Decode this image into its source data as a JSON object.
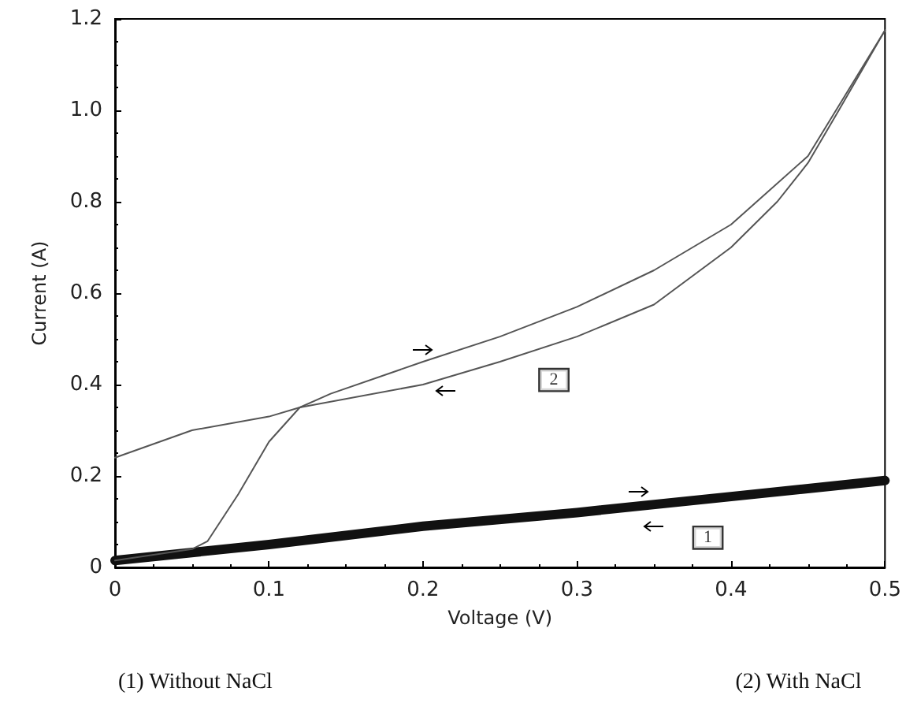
{
  "chart_data": {
    "type": "line",
    "xlabel": "Voltage (V)",
    "ylabel": "Current (A)",
    "xlim": [
      0,
      0.5
    ],
    "xticks": [
      0,
      0.1,
      0.2,
      0.3,
      0.4,
      0.5
    ],
    "ylim": [
      0,
      1.2
    ],
    "yticks": [
      0,
      0.2,
      0.4,
      0.6,
      0.8,
      {
        "value": 1,
        "label": "1.0"
      },
      1.2
    ],
    "grid": false,
    "marker": "none",
    "line_style": "solid",
    "series": [
      {
        "color": "#111111",
        "x": [
          0,
          0.1,
          0.2,
          0.3,
          0.4,
          0.5
        ],
        "values": [
          0.015,
          0.05,
          0.09,
          0.12,
          0.155,
          0.19
        ]
      },
      {
        "color": "#555555",
        "x": [
          0,
          0.05,
          0.06,
          0.08,
          0.1,
          0.12,
          0.14,
          0.2,
          0.25,
          0.3,
          0.35,
          0.4,
          0.45,
          0.5
        ],
        "values": [
          0.015,
          0.04,
          0.057,
          0.16,
          0.275,
          0.35,
          0.38,
          0.45,
          0.505,
          0.57,
          0.65,
          0.75,
          0.9,
          1.175
        ]
      },
      {
        "color": "#555555",
        "x": [
          0,
          0.05,
          0.1,
          0.12,
          0.2,
          0.25,
          0.3,
          0.35,
          0.4,
          0.43,
          0.45,
          0.47,
          0.5
        ],
        "values": [
          0.24,
          0.3,
          0.33,
          0.35,
          0.4,
          0.45,
          0.505,
          0.575,
          0.7,
          0.8,
          0.885,
          1.0,
          1.175
        ]
      }
    ],
    "annotations": [
      {
        "text": "2",
        "x": 0.285,
        "y": 0.41
      },
      {
        "text": "1",
        "x": 0.385,
        "y": 0.065
      },
      "(1) Without NaCl",
      "(2) With NaCl"
    ]
  }
}
